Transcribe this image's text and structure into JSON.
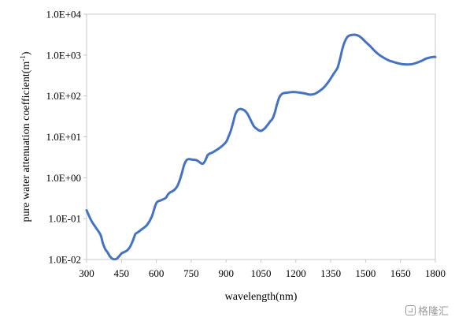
{
  "chart_data": {
    "type": "line",
    "title": "",
    "xlabel": "wavelength(nm)",
    "ylabel": "pure water attenuation coefficient(m",
    "ylabel_sup": "-1",
    "ylabel_close": ")",
    "xlim": [
      300,
      1800
    ],
    "ylim": [
      0.01,
      10000
    ],
    "yscale": "log",
    "x_ticks": [
      300,
      450,
      600,
      750,
      900,
      1050,
      1200,
      1350,
      1500,
      1650,
      1800
    ],
    "y_ticks": [
      0.01,
      0.1,
      1,
      10,
      100,
      1000,
      10000
    ],
    "y_tick_labels": [
      "1.0E-02",
      "1.0E-01",
      "1.0E+00",
      "1.0E+01",
      "1.0E+02",
      "1.0E+03",
      "1.0E+04"
    ],
    "grid": false,
    "line_color": "#4472C4",
    "series": [
      {
        "name": "",
        "x": [
          300,
          320,
          340,
          360,
          370,
          380,
          390,
          400,
          410,
          420,
          430,
          440,
          450,
          460,
          470,
          480,
          490,
          500,
          510,
          520,
          540,
          560,
          580,
          600,
          620,
          640,
          650,
          660,
          670,
          680,
          690,
          700,
          710,
          720,
          730,
          740,
          750,
          760,
          770,
          780,
          790,
          800,
          810,
          820,
          830,
          840,
          860,
          880,
          900,
          910,
          920,
          930,
          940,
          950,
          960,
          970,
          980,
          990,
          1000,
          1010,
          1020,
          1030,
          1040,
          1050,
          1060,
          1070,
          1080,
          1090,
          1100,
          1110,
          1120,
          1130,
          1140,
          1150,
          1160,
          1170,
          1180,
          1190,
          1200,
          1220,
          1240,
          1260,
          1280,
          1300,
          1320,
          1340,
          1360,
          1370,
          1380,
          1390,
          1400,
          1410,
          1420,
          1430,
          1440,
          1450,
          1460,
          1470,
          1480,
          1490,
          1500,
          1520,
          1540,
          1560,
          1580,
          1600,
          1620,
          1640,
          1660,
          1680,
          1700,
          1720,
          1740,
          1760,
          1780,
          1790,
          1800
        ],
        "values": [
          0.16,
          0.09,
          0.06,
          0.04,
          0.025,
          0.018,
          0.015,
          0.012,
          0.0105,
          0.0101,
          0.0105,
          0.012,
          0.014,
          0.015,
          0.016,
          0.018,
          0.022,
          0.03,
          0.042,
          0.046,
          0.056,
          0.07,
          0.11,
          0.24,
          0.28,
          0.32,
          0.39,
          0.44,
          0.47,
          0.52,
          0.62,
          0.85,
          1.3,
          2.1,
          2.7,
          2.85,
          2.8,
          2.75,
          2.7,
          2.55,
          2.3,
          2.2,
          2.6,
          3.5,
          3.9,
          4.1,
          4.8,
          5.8,
          7.5,
          10,
          14,
          22,
          36,
          45,
          48,
          47,
          44,
          38,
          30,
          23,
          18,
          16,
          14.5,
          14,
          15,
          17,
          20,
          24,
          28,
          40,
          65,
          95,
          112,
          118,
          120,
          122,
          124,
          125,
          124,
          120,
          115,
          108,
          112,
          130,
          160,
          220,
          330,
          400,
          500,
          800,
          1400,
          2100,
          2700,
          3000,
          3100,
          3150,
          3100,
          2950,
          2700,
          2400,
          2100,
          1650,
          1250,
          1000,
          850,
          740,
          680,
          630,
          600,
          590,
          600,
          650,
          720,
          820,
          880,
          900,
          900
        ]
      }
    ]
  },
  "watermark": {
    "text": "格隆汇",
    "icon": "logo-icon"
  }
}
